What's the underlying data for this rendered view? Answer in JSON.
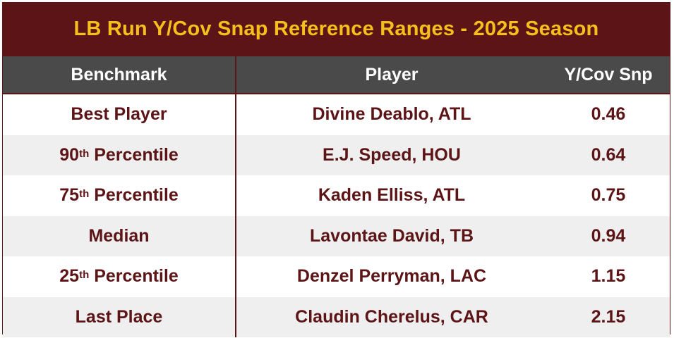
{
  "title": "LB Run Y/Cov Snap Reference Ranges - 2025 Season",
  "colors": {
    "title_bg": "#5c1416",
    "title_text": "#f5c01d",
    "header_bg": "#4a4a4a",
    "header_text": "#ffffff",
    "body_text": "#5c1416",
    "stripe": "#efefef"
  },
  "headers": {
    "benchmark": "Benchmark",
    "player": "Player",
    "value": "Y/Cov Snp"
  },
  "rows": [
    {
      "bench_main": "Best Player",
      "bench_sup": "",
      "bench_suffix": "",
      "player": "Divine Deablo, ATL",
      "value": "0.46"
    },
    {
      "bench_main": "90",
      "bench_sup": "th",
      "bench_suffix": " Percentile",
      "player": "E.J. Speed, HOU",
      "value": "0.64"
    },
    {
      "bench_main": "75",
      "bench_sup": "th",
      "bench_suffix": " Percentile",
      "player": "Kaden Elliss, ATL",
      "value": "0.75"
    },
    {
      "bench_main": "Median",
      "bench_sup": "",
      "bench_suffix": "",
      "player": "Lavontae David, TB",
      "value": "0.94"
    },
    {
      "bench_main": "25",
      "bench_sup": "th",
      "bench_suffix": " Percentile",
      "player": "Denzel Perryman, LAC",
      "value": "1.15"
    },
    {
      "bench_main": "Last Place",
      "bench_sup": "",
      "bench_suffix": "",
      "player": "Claudin Cherelus, CAR",
      "value": "2.15"
    }
  ],
  "chart_data": {
    "type": "table",
    "title": "LB Run Y/Cov Snap Reference Ranges - 2025 Season",
    "columns": [
      "Benchmark",
      "Player",
      "Y/Cov Snp"
    ],
    "rows": [
      [
        "Best Player",
        "Divine Deablo, ATL",
        0.46
      ],
      [
        "90th Percentile",
        "E.J. Speed, HOU",
        0.64
      ],
      [
        "75th Percentile",
        "Kaden Elliss, ATL",
        0.75
      ],
      [
        "Median",
        "Lavontae David, TB",
        0.94
      ],
      [
        "25th Percentile",
        "Denzel Perryman, LAC",
        1.15
      ],
      [
        "Last Place",
        "Claudin Cherelus, CAR",
        2.15
      ]
    ]
  }
}
